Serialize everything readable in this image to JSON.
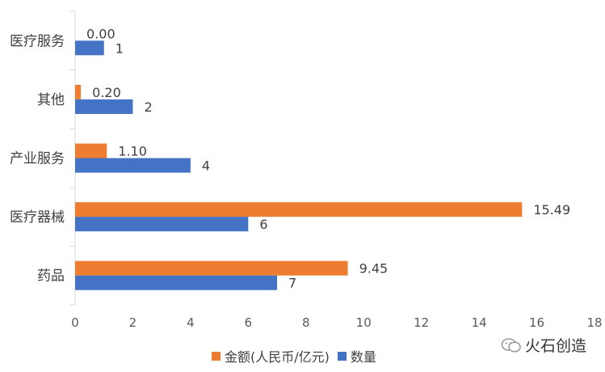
{
  "chart_data": {
    "type": "bar",
    "orientation": "horizontal",
    "categories": [
      "医疗服务",
      "其他",
      "产业服务",
      "医疗器械",
      "药品"
    ],
    "series": [
      {
        "name": "金额(人民币/亿元)",
        "color": "#ED7D31",
        "values": [
          0.0,
          0.2,
          1.1,
          15.49,
          9.45
        ],
        "labels": [
          "0.00",
          "0.20",
          "1.10",
          "15.49",
          "9.45"
        ]
      },
      {
        "name": "数量",
        "color": "#4472C4",
        "values": [
          1,
          2,
          4,
          6,
          7
        ],
        "labels": [
          "1",
          "2",
          "4",
          "6",
          "7"
        ]
      }
    ],
    "xlim": [
      0,
      18
    ],
    "xticks": [
      "0",
      "2",
      "4",
      "6",
      "8",
      "10",
      "12",
      "14",
      "16",
      "18"
    ],
    "grid": false,
    "legend": "bottom",
    "title": "",
    "xlabel": "",
    "ylabel": ""
  },
  "watermark": {
    "icon": "wechat-icon",
    "text": "火石创造"
  }
}
